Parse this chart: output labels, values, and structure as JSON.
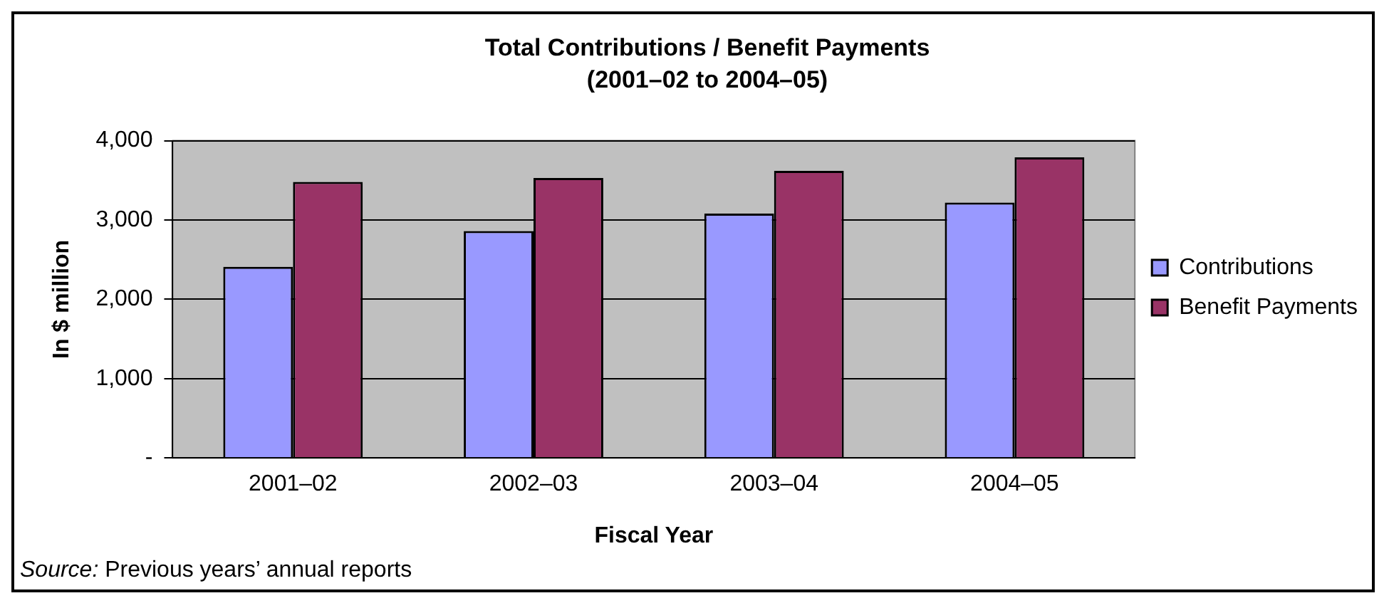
{
  "chart_data": {
    "type": "bar",
    "title": "Total Contributions / Benefit Payments",
    "subtitle": "(2001–02 to 2004–05)",
    "xlabel": "Fiscal Year",
    "ylabel": "In $ million",
    "categories": [
      "2001–02",
      "2002–03",
      "2003–04",
      "2004–05"
    ],
    "series": [
      {
        "name": "Contributions",
        "color": "#9999ff",
        "values": [
          2410,
          2860,
          3080,
          3220
        ]
      },
      {
        "name": "Benefit Payments",
        "color": "#993366",
        "values": [
          3480,
          3530,
          3620,
          3790
        ]
      }
    ],
    "ylim": [
      0,
      4000
    ],
    "yticks": [
      {
        "value": 0,
        "label": "-"
      },
      {
        "value": 1000,
        "label": "1,000"
      },
      {
        "value": 2000,
        "label": "2,000"
      },
      {
        "value": 3000,
        "label": "3,000"
      },
      {
        "value": 4000,
        "label": "4,000"
      }
    ],
    "grid": "y",
    "legend": "right",
    "annotations": [
      "Source: Previous years’ annual reports"
    ]
  }
}
